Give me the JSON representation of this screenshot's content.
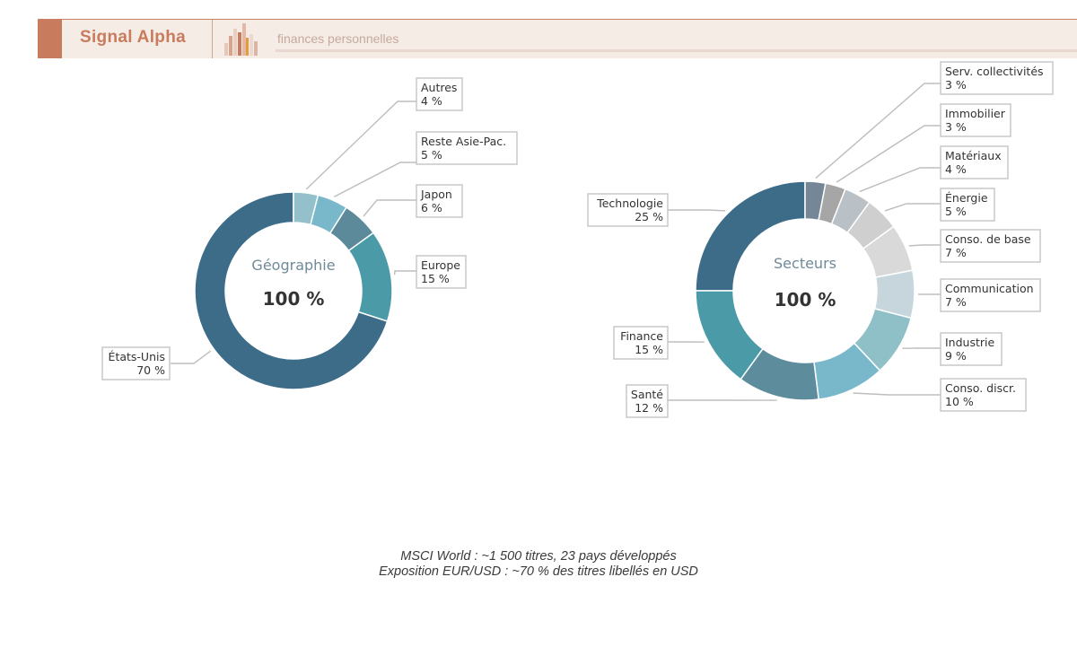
{
  "header": {
    "brand": "Signal Alpha",
    "tagline": "finances personnelles",
    "logo_icon": "bar-chart-logo-icon"
  },
  "colors": {
    "accent": "#c97b5e",
    "header_bg": "#f6ece6"
  },
  "chart_data": [
    {
      "type": "pie",
      "title": "Géographie",
      "center_value": "100 %",
      "slices": [
        {
          "label": "États-Unis",
          "value": 70,
          "display": "70 %",
          "color": "#3d6c89"
        },
        {
          "label": "Europe",
          "value": 15,
          "display": "15 %",
          "color": "#4b9aa7"
        },
        {
          "label": "Japon",
          "value": 6,
          "display": "6 %",
          "color": "#5d8a9b"
        },
        {
          "label": "Reste Asie-Pac.",
          "value": 5,
          "display": "5 %",
          "color": "#79b7cb"
        },
        {
          "label": "Autres",
          "value": 4,
          "display": "4 %",
          "color": "#93c0cb"
        }
      ]
    },
    {
      "type": "pie",
      "title": "Secteurs",
      "center_value": "100 %",
      "slices": [
        {
          "label": "Technologie",
          "value": 25,
          "display": "25 %",
          "color": "#3d6c89"
        },
        {
          "label": "Finance",
          "value": 15,
          "display": "15 %",
          "color": "#4b9aa7"
        },
        {
          "label": "Santé",
          "value": 12,
          "display": "12 %",
          "color": "#5d8c9c"
        },
        {
          "label": "Conso. discr.",
          "value": 10,
          "display": "10 %",
          "color": "#79b7cb"
        },
        {
          "label": "Industrie",
          "value": 9,
          "display": "9 %",
          "color": "#8fc0c8"
        },
        {
          "label": "Communication",
          "value": 7,
          "display": "7 %",
          "color": "#c7d6dd"
        },
        {
          "label": "Conso. de base",
          "value": 7,
          "display": "7 %",
          "color": "#d9d9d9"
        },
        {
          "label": "Énergie",
          "value": 5,
          "display": "5 %",
          "color": "#cfcfcf"
        },
        {
          "label": "Matériaux",
          "value": 4,
          "display": "4 %",
          "color": "#b9c1c7"
        },
        {
          "label": "Immobilier",
          "value": 3,
          "display": "3 %",
          "color": "#a6a6a6"
        },
        {
          "label": "Serv. collectivités",
          "value": 3,
          "display": "3 %",
          "color": "#758797"
        }
      ]
    }
  ],
  "footnotes": [
    "MSCI World : ~1 500 titres, 23 pays développés",
    "Exposition EUR/USD : ~70 % des titres libellés en USD"
  ]
}
